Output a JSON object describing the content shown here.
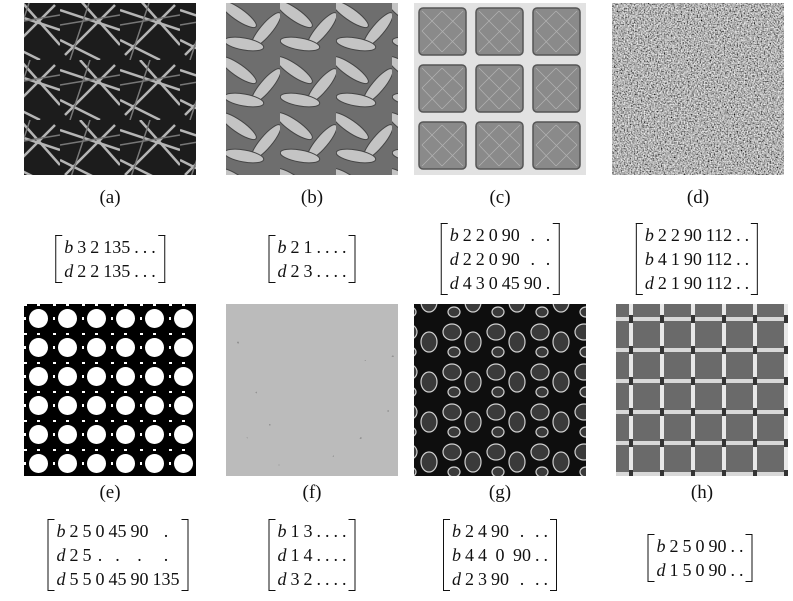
{
  "panels": [
    {
      "label": "(a)",
      "matrix": [
        [
          "b",
          "3",
          "2",
          "135",
          ".",
          ".",
          "."
        ],
        [
          "d",
          "2",
          "2",
          "135",
          ".",
          ".",
          "."
        ]
      ]
    },
    {
      "label": "(b)",
      "matrix": [
        [
          "b",
          "2",
          "1",
          ".",
          ".",
          ".",
          "."
        ],
        [
          "d",
          "2",
          "3",
          ".",
          ".",
          ".",
          "."
        ]
      ]
    },
    {
      "label": "(c)",
      "matrix": [
        [
          "b",
          "2",
          "2",
          "0",
          "90",
          ".",
          "."
        ],
        [
          "d",
          "2",
          "2",
          "0",
          "90",
          ".",
          "."
        ],
        [
          "d",
          "4",
          "3",
          "0",
          "45",
          "90",
          "."
        ]
      ]
    },
    {
      "label": "(d)",
      "matrix": [
        [
          "b",
          "2",
          "2",
          "90",
          "112",
          ".",
          "."
        ],
        [
          "b",
          "4",
          "1",
          "90",
          "112",
          ".",
          "."
        ],
        [
          "d",
          "2",
          "1",
          "90",
          "112",
          ".",
          "."
        ]
      ]
    },
    {
      "label": "(e)",
      "matrix": [
        [
          "b",
          "2",
          "5",
          "0",
          "45",
          "90",
          "."
        ],
        [
          "d",
          "2",
          "5",
          ".",
          ".",
          ".",
          "."
        ],
        [
          "d",
          "5",
          "5",
          "0",
          "45",
          "90",
          "135"
        ]
      ]
    },
    {
      "label": "(f)",
      "matrix": [
        [
          "b",
          "1",
          "3",
          ".",
          ".",
          ".",
          "."
        ],
        [
          "d",
          "1",
          "4",
          ".",
          ".",
          ".",
          "."
        ],
        [
          "d",
          "3",
          "2",
          ".",
          ".",
          ".",
          "."
        ]
      ]
    },
    {
      "label": "(g)",
      "matrix": [
        [
          "b",
          "2",
          "4",
          "90",
          ".",
          ".",
          "."
        ],
        [
          "b",
          "4",
          "4",
          "0",
          "90",
          ".",
          "."
        ],
        [
          "d",
          "2",
          "3",
          "90",
          ".",
          ".",
          "."
        ]
      ]
    },
    {
      "label": "(h)",
      "matrix": [
        [
          "b",
          "2",
          "5",
          "0",
          "90",
          ".",
          "."
        ],
        [
          "d",
          "1",
          "5",
          "0",
          "90",
          ".",
          "."
        ]
      ]
    }
  ]
}
